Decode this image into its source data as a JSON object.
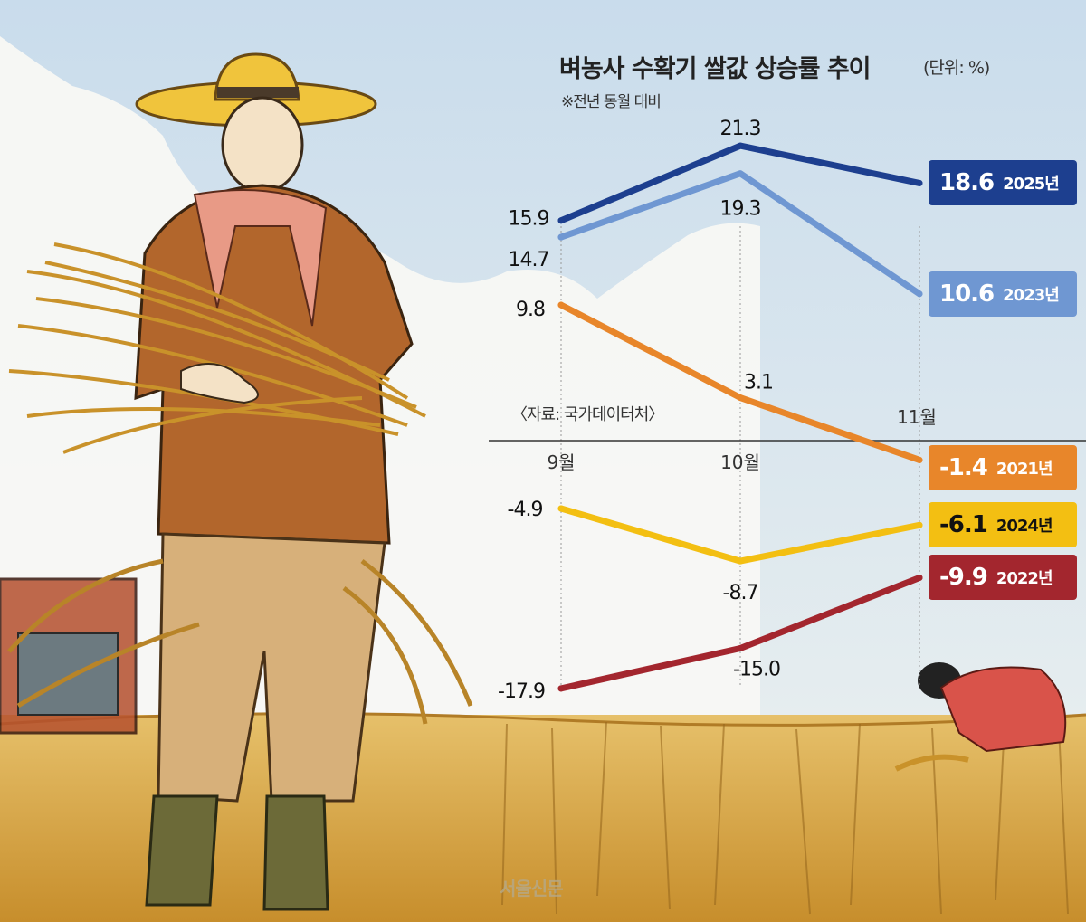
{
  "title": "벼농사 수확기 쌀값 상승률 추이",
  "unit": "(단위: %)",
  "subtitle": "※전년 동월 대비",
  "source": "〈자료: 국가데이터처〉",
  "watermark": "서울신문",
  "chart_data": {
    "type": "line",
    "categories": [
      "9월",
      "10월",
      "11월"
    ],
    "series": [
      {
        "name": "2025년",
        "values": [
          15.9,
          21.3,
          18.6
        ],
        "color": "#1d3f8f"
      },
      {
        "name": "2023년",
        "values": [
          14.7,
          19.3,
          10.6
        ],
        "color": "#6f97d2"
      },
      {
        "name": "2021년",
        "values": [
          9.8,
          3.1,
          -1.4
        ],
        "color": "#e8862a"
      },
      {
        "name": "2024년",
        "values": [
          -4.9,
          -8.7,
          -6.1
        ],
        "color": "#f3bf12"
      },
      {
        "name": "2022년",
        "values": [
          -17.9,
          -15.0,
          -9.9
        ],
        "color": "#a3262e"
      }
    ],
    "value_labels": [
      [
        "15.9",
        "21.3",
        "18.6"
      ],
      [
        "14.7",
        "19.3",
        "10.6"
      ],
      [
        "9.8",
        "3.1",
        "-1.4"
      ],
      [
        "-4.9",
        "-8.7",
        "-6.1"
      ],
      [
        "-17.9",
        "-15.0",
        "-9.9"
      ]
    ],
    "ylim": [
      -20,
      24
    ],
    "legend": "right, value badges at last point",
    "grid": false
  }
}
